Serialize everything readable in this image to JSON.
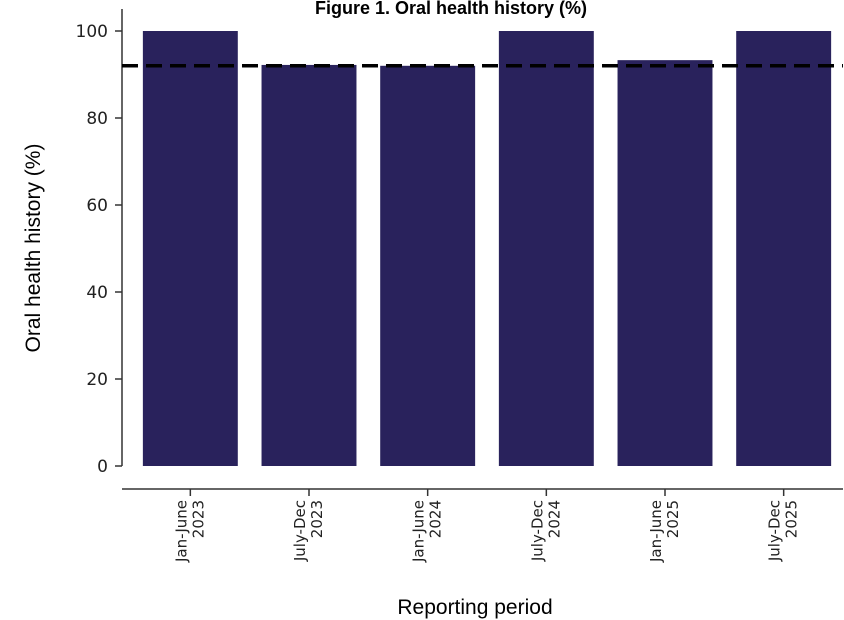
{
  "chart_data": {
    "type": "bar",
    "title": "Figure 1. Oral health history (%)",
    "xlabel": "Reporting period",
    "ylabel": "Oral health history (%)",
    "categories": [
      [
        "Jan-June",
        "2023"
      ],
      [
        "July-Dec",
        "2023"
      ],
      [
        "Jan-June",
        "2024"
      ],
      [
        "July-Dec",
        "2024"
      ],
      [
        "Jan-June",
        "2025"
      ],
      [
        "July-Dec",
        "2025"
      ]
    ],
    "values": [
      100,
      92.2,
      92,
      100,
      93.3,
      100
    ],
    "reference_line": 92,
    "ylim": [
      0,
      100
    ],
    "yticks": [
      0,
      20,
      40,
      60,
      80,
      100
    ],
    "grid": false,
    "legend": "none",
    "bar_color": "#29225c",
    "reference_line_color": "#000000"
  }
}
